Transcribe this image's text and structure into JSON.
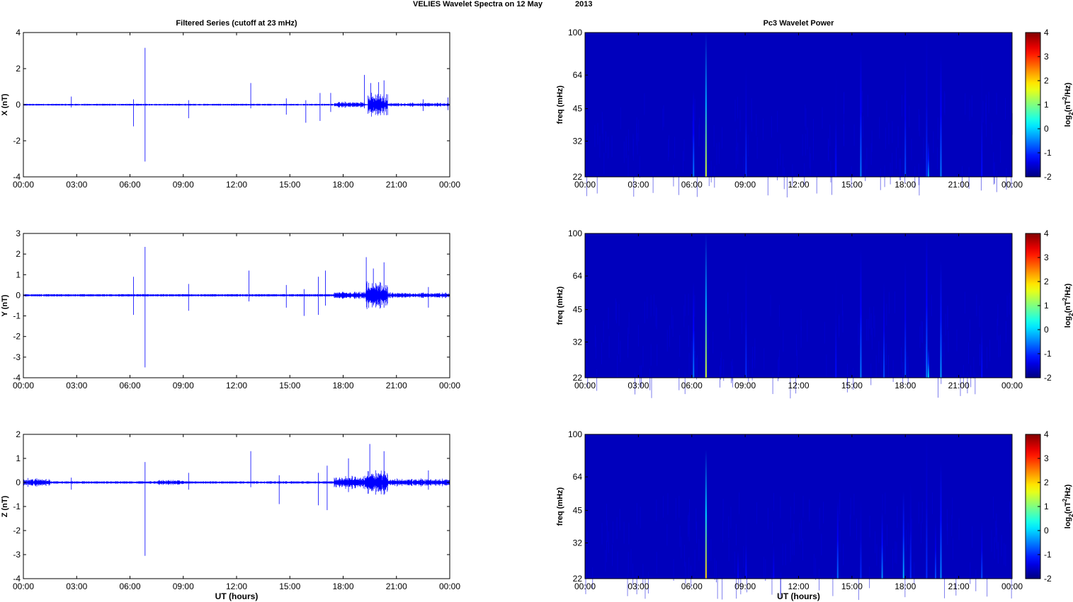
{
  "figure": {
    "title_part1": "VELIES Wavelet Spectra on 12 May",
    "title_part2": "2013",
    "left_column_title": "Filtered Series (cutoff at 23 mHz)",
    "right_column_title": "Pc3 Wavelet Power",
    "xlabel": "UT (hours)",
    "colors": {
      "trace": "#0000ff",
      "background_power": "#00008f"
    }
  },
  "chart_data": [
    {
      "type": "line",
      "name": "X component filtered series",
      "title": "Filtered Series (cutoff at 23 mHz)",
      "ylabel": "X (nT)",
      "xlabel": "",
      "x_ticks": [
        "00:00",
        "03:00",
        "06:00",
        "09:00",
        "12:00",
        "15:00",
        "18:00",
        "21:00",
        "00:00"
      ],
      "xlim_hours": [
        0,
        24
      ],
      "ylim": [
        -4,
        4
      ],
      "y_ticks": [
        -4,
        -2,
        0,
        2,
        4
      ],
      "noise_amplitude": 0.05,
      "spikes": [
        {
          "t": 2.7,
          "hi": 0.45,
          "lo": -0.15
        },
        {
          "t": 6.2,
          "hi": 0.3,
          "lo": -1.2
        },
        {
          "t": 6.85,
          "hi": 3.15,
          "lo": -3.15
        },
        {
          "t": 9.3,
          "hi": 0.25,
          "lo": -0.75
        },
        {
          "t": 12.8,
          "hi": 1.2,
          "lo": -0.2
        },
        {
          "t": 14.8,
          "hi": 0.35,
          "lo": -0.55
        },
        {
          "t": 15.9,
          "hi": 0.25,
          "lo": -1.0
        },
        {
          "t": 16.7,
          "hi": 0.65,
          "lo": -0.9
        },
        {
          "t": 17.3,
          "hi": 0.65,
          "lo": -0.4
        },
        {
          "t": 19.2,
          "hi": 1.65,
          "lo": -0.2
        },
        {
          "t": 19.55,
          "hi": 1.2,
          "lo": -0.4
        },
        {
          "t": 20.0,
          "hi": 1.25,
          "lo": -0.5
        },
        {
          "t": 20.3,
          "hi": 1.35,
          "lo": -0.3
        },
        {
          "t": 22.5,
          "hi": 0.3,
          "lo": -0.35
        },
        {
          "t": 23.9,
          "hi": 0.4,
          "lo": -0.3
        }
      ],
      "bursts": [
        {
          "t0": 19.4,
          "t1": 20.5,
          "amp": 0.7
        },
        {
          "t0": 17.5,
          "t1": 19.2,
          "amp": 0.18
        },
        {
          "t0": 20.5,
          "t1": 24.0,
          "amp": 0.12
        }
      ]
    },
    {
      "type": "line",
      "name": "Y component filtered series",
      "ylabel": "Y (nT)",
      "x_ticks": [
        "00:00",
        "03:00",
        "06:00",
        "09:00",
        "12:00",
        "15:00",
        "18:00",
        "21:00",
        "00:00"
      ],
      "xlim_hours": [
        0,
        24
      ],
      "ylim": [
        -4,
        3
      ],
      "y_ticks": [
        -4,
        -3,
        -2,
        -1,
        0,
        1,
        2,
        3
      ],
      "noise_amplitude": 0.06,
      "spikes": [
        {
          "t": 6.2,
          "hi": 0.9,
          "lo": -0.95
        },
        {
          "t": 6.85,
          "hi": 2.35,
          "lo": -3.5
        },
        {
          "t": 9.3,
          "hi": 0.55,
          "lo": -0.75
        },
        {
          "t": 12.7,
          "hi": 1.2,
          "lo": -0.3
        },
        {
          "t": 14.8,
          "hi": 0.5,
          "lo": -0.6
        },
        {
          "t": 15.8,
          "hi": 0.3,
          "lo": -1.0
        },
        {
          "t": 16.6,
          "hi": 0.9,
          "lo": -0.95
        },
        {
          "t": 17.0,
          "hi": 1.2,
          "lo": -0.5
        },
        {
          "t": 19.3,
          "hi": 1.85,
          "lo": -0.3
        },
        {
          "t": 19.7,
          "hi": 1.3,
          "lo": -0.5
        },
        {
          "t": 20.3,
          "hi": 1.6,
          "lo": -0.6
        },
        {
          "t": 22.8,
          "hi": 0.4,
          "lo": -0.6
        }
      ],
      "bursts": [
        {
          "t0": 19.3,
          "t1": 20.5,
          "amp": 0.75
        },
        {
          "t0": 17.5,
          "t1": 19.3,
          "amp": 0.2
        },
        {
          "t0": 20.5,
          "t1": 24.0,
          "amp": 0.15
        }
      ]
    },
    {
      "type": "line",
      "name": "Z component filtered series",
      "ylabel": "Z (nT)",
      "xlabel": "UT (hours)",
      "x_ticks": [
        "00:00",
        "03:00",
        "06:00",
        "09:00",
        "12:00",
        "15:00",
        "18:00",
        "21:00",
        "00:00"
      ],
      "xlim_hours": [
        0,
        24
      ],
      "ylim": [
        -4,
        2
      ],
      "y_ticks": [
        -4,
        -3,
        -2,
        -1,
        0,
        1,
        2
      ],
      "noise_amplitude": 0.05,
      "spikes": [
        {
          "t": 2.7,
          "hi": 0.2,
          "lo": -0.3
        },
        {
          "t": 6.85,
          "hi": 0.85,
          "lo": -3.05
        },
        {
          "t": 9.3,
          "hi": 0.4,
          "lo": -0.3
        },
        {
          "t": 12.8,
          "hi": 1.3,
          "lo": -0.2
        },
        {
          "t": 14.4,
          "hi": 0.3,
          "lo": -0.9
        },
        {
          "t": 16.6,
          "hi": 0.4,
          "lo": -0.95
        },
        {
          "t": 17.1,
          "hi": 0.7,
          "lo": -1.15
        },
        {
          "t": 18.3,
          "hi": 1.0,
          "lo": -0.4
        },
        {
          "t": 19.5,
          "hi": 1.6,
          "lo": -0.3
        },
        {
          "t": 20.3,
          "hi": 1.3,
          "lo": -0.5
        },
        {
          "t": 22.8,
          "hi": 0.5,
          "lo": -0.3
        }
      ],
      "bursts": [
        {
          "t0": 19.3,
          "t1": 20.5,
          "amp": 0.65
        },
        {
          "t0": 17.5,
          "t1": 19.3,
          "amp": 0.3
        },
        {
          "t0": 0.0,
          "t1": 1.5,
          "amp": 0.2
        },
        {
          "t0": 7.5,
          "t1": 9.0,
          "amp": 0.12
        },
        {
          "t0": 20.5,
          "t1": 24.0,
          "amp": 0.18
        }
      ]
    },
    {
      "type": "heatmap",
      "name": "X component Pc3 wavelet power",
      "title": "Pc3 Wavelet Power",
      "ylabel": "freq (mHz)",
      "x_ticks": [
        "00:00",
        "03:00",
        "06:00",
        "09:00",
        "12:00",
        "15:00",
        "18:00",
        "21:00",
        "00:00"
      ],
      "y_ticks": [
        22,
        32,
        45,
        64,
        100
      ],
      "ylim_mHz": [
        22,
        100
      ],
      "colorbar": {
        "label": "log2(nT^2/Hz)",
        "ticks": [
          -2,
          -1,
          0,
          1,
          2,
          3,
          4
        ],
        "range": [
          -2,
          4
        ]
      },
      "background_level": -2,
      "streaks": [
        {
          "t": 6.1,
          "level": -0.5,
          "fmax": 55
        },
        {
          "t": 6.8,
          "level": 1.5,
          "fmax": 100
        },
        {
          "t": 9.05,
          "level": -1.0,
          "fmax": 70
        },
        {
          "t": 14.1,
          "level": -1.2,
          "fmax": 70
        },
        {
          "t": 15.5,
          "level": -0.5,
          "fmax": 85
        },
        {
          "t": 18.0,
          "level": -0.8,
          "fmax": 75
        },
        {
          "t": 19.2,
          "level": -1.0,
          "fmax": 100
        },
        {
          "t": 19.3,
          "level": -0.3,
          "fmax": 32
        },
        {
          "t": 20.0,
          "level": -0.5,
          "fmax": 80
        },
        {
          "t": 22.3,
          "level": -1.2,
          "fmax": 80
        }
      ]
    },
    {
      "type": "heatmap",
      "name": "Y component Pc3 wavelet power",
      "ylabel": "freq (mHz)",
      "x_ticks": [
        "00:00",
        "03:00",
        "06:00",
        "09:00",
        "12:00",
        "15:00",
        "18:00",
        "21:00",
        "00:00"
      ],
      "y_ticks": [
        22,
        32,
        45,
        64,
        100
      ],
      "ylim_mHz": [
        22,
        100
      ],
      "colorbar": {
        "label": "log2(nT^2/Hz)",
        "ticks": [
          -2,
          -1,
          0,
          1,
          2,
          3,
          4
        ],
        "range": [
          -2,
          4
        ]
      },
      "background_level": -2,
      "streaks": [
        {
          "t": 6.1,
          "level": -0.5,
          "fmax": 60
        },
        {
          "t": 6.8,
          "level": 1.5,
          "fmax": 100
        },
        {
          "t": 9.05,
          "level": -1.0,
          "fmax": 75
        },
        {
          "t": 14.1,
          "level": -1.2,
          "fmax": 70
        },
        {
          "t": 15.5,
          "level": -0.5,
          "fmax": 85
        },
        {
          "t": 16.8,
          "level": -0.8,
          "fmax": 60
        },
        {
          "t": 18.0,
          "level": -0.8,
          "fmax": 75
        },
        {
          "t": 19.2,
          "level": -0.5,
          "fmax": 100
        },
        {
          "t": 19.3,
          "level": 0.0,
          "fmax": 30
        },
        {
          "t": 20.0,
          "level": -0.3,
          "fmax": 75
        },
        {
          "t": 22.3,
          "level": -1.2,
          "fmax": 60
        }
      ]
    },
    {
      "type": "heatmap",
      "name": "Z component Pc3 wavelet power",
      "ylabel": "freq (mHz)",
      "xlabel": "UT (hours)",
      "x_ticks": [
        "00:00",
        "03:00",
        "06:00",
        "09:00",
        "12:00",
        "15:00",
        "18:00",
        "21:00",
        "00:00"
      ],
      "y_ticks": [
        22,
        32,
        45,
        64,
        100
      ],
      "ylim_mHz": [
        22,
        100
      ],
      "colorbar": {
        "label": "log2(nT^2/Hz)",
        "ticks": [
          -2,
          -1,
          0,
          1,
          2,
          3,
          4
        ],
        "range": [
          -2,
          4
        ]
      },
      "background_level": -2,
      "streaks": [
        {
          "t": 6.8,
          "level": 2.0,
          "fmax": 85
        },
        {
          "t": 8.6,
          "level": -1.3,
          "fmax": 40
        },
        {
          "t": 9.05,
          "level": -1.2,
          "fmax": 45
        },
        {
          "t": 10.6,
          "level": -1.3,
          "fmax": 45
        },
        {
          "t": 14.2,
          "level": -0.6,
          "fmax": 50
        },
        {
          "t": 15.5,
          "level": -1.0,
          "fmax": 50
        },
        {
          "t": 16.7,
          "level": -0.4,
          "fmax": 45
        },
        {
          "t": 17.9,
          "level": -0.2,
          "fmax": 55
        },
        {
          "t": 18.3,
          "level": -1.0,
          "fmax": 60
        },
        {
          "t": 19.2,
          "level": -1.0,
          "fmax": 100
        },
        {
          "t": 19.7,
          "level": -0.8,
          "fmax": 40
        },
        {
          "t": 20.0,
          "level": -0.4,
          "fmax": 75
        },
        {
          "t": 22.3,
          "level": -0.8,
          "fmax": 40
        }
      ]
    }
  ]
}
